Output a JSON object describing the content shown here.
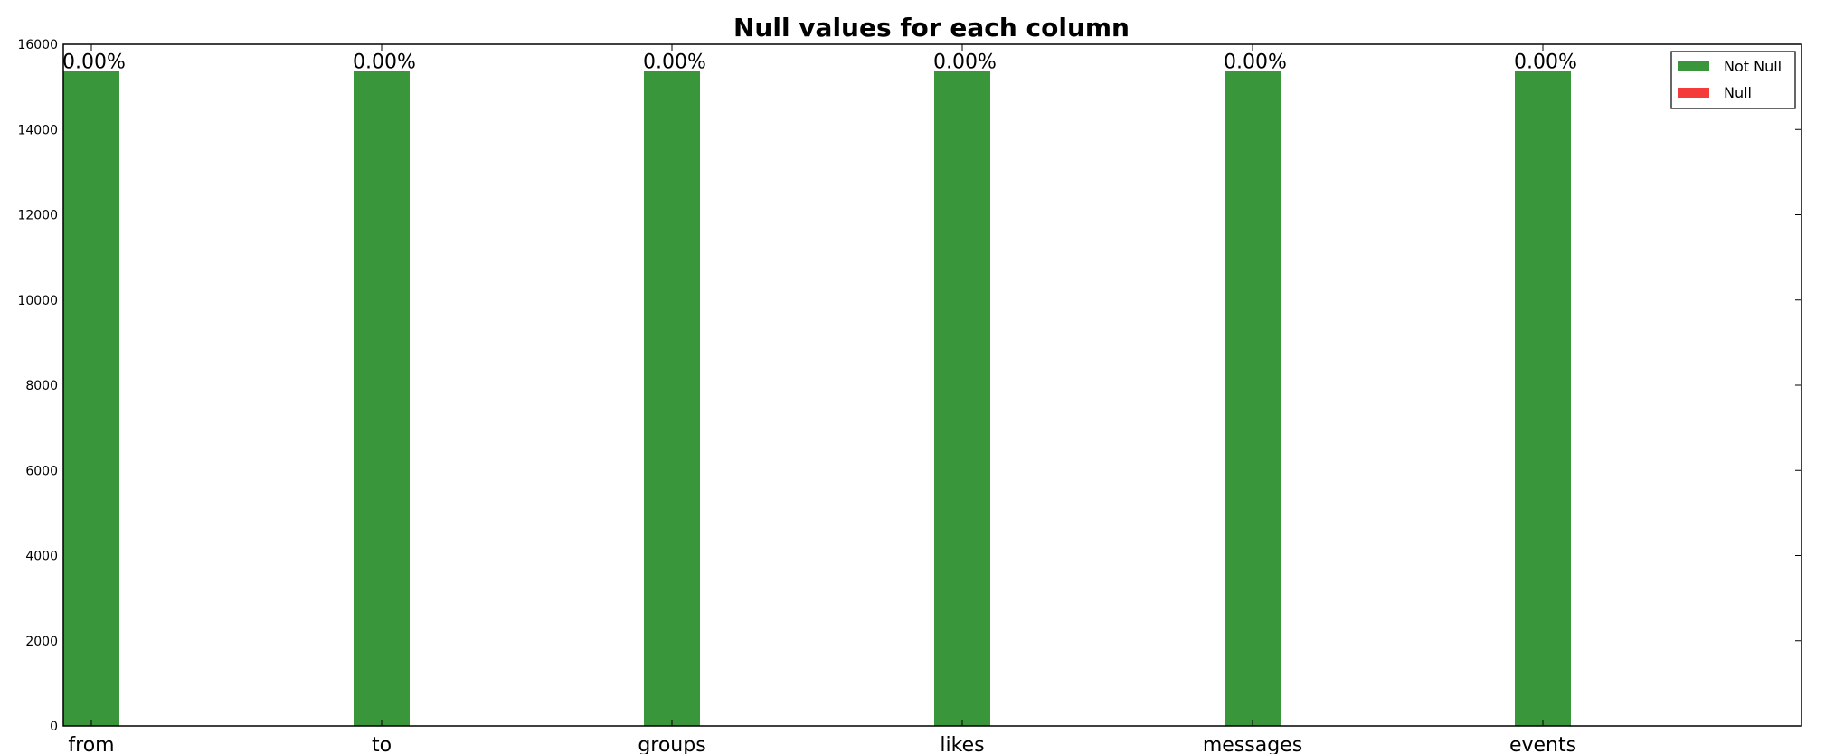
{
  "chart_data": {
    "type": "bar",
    "title": "Null values for each column",
    "xlabel": "",
    "ylabel": "",
    "categories": [
      "from",
      "to",
      "groups",
      "likes",
      "messages",
      "events"
    ],
    "series": [
      {
        "name": "Not Null",
        "color": "#3a963a",
        "values": [
          15370,
          15370,
          15370,
          15370,
          15370,
          15370
        ]
      },
      {
        "name": "Null",
        "color": "#f53a3a",
        "values": [
          0,
          0,
          0,
          0,
          0,
          0
        ]
      }
    ],
    "data_labels": [
      "0.00%",
      "0.00%",
      "0.00%",
      "0.00%",
      "0.00%",
      "0.00%"
    ],
    "ylim": [
      0,
      16000
    ],
    "yticks": [
      0,
      2000,
      4000,
      6000,
      8000,
      10000,
      12000,
      14000,
      16000
    ],
    "grid": false,
    "legend_position": "top-right"
  }
}
